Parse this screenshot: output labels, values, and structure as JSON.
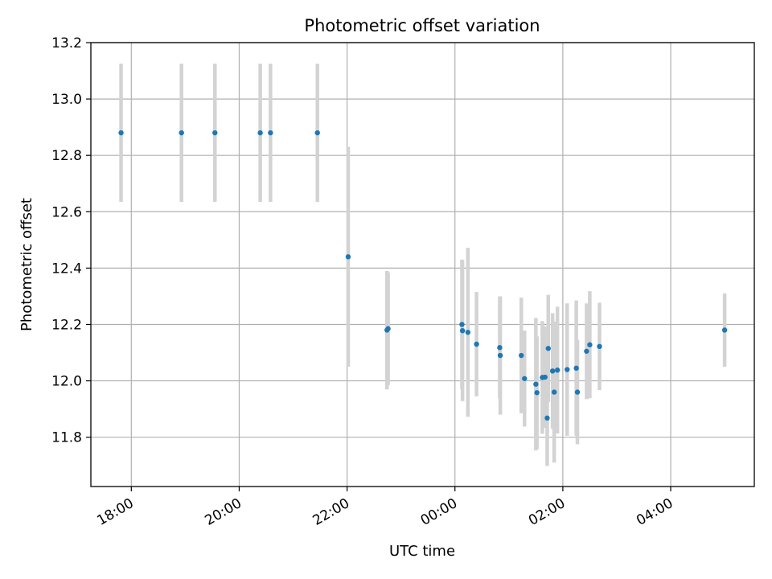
{
  "colors": {
    "points": "#1f77b4",
    "error_bars": "#d3d3d3",
    "grid": "#b0b0b0"
  },
  "chart_data": {
    "type": "scatter",
    "title": "Photometric offset variation",
    "xlabel": "UTC time",
    "ylabel": "Photometric offset",
    "x_unit": "hours (UTC; values above 24 fall on the next day)",
    "xlim": [
      17.25,
      29.55
    ],
    "ylim": [
      11.625,
      13.2
    ],
    "grid": true,
    "legend": "none",
    "x_ticks": [
      {
        "value": 18,
        "label": "18:00"
      },
      {
        "value": 20,
        "label": "20:00"
      },
      {
        "value": 22,
        "label": "22:00"
      },
      {
        "value": 24,
        "label": "00:00"
      },
      {
        "value": 26,
        "label": "02:00"
      },
      {
        "value": 28,
        "label": "04:00"
      }
    ],
    "y_ticks": [
      {
        "value": 11.8,
        "label": "11.8"
      },
      {
        "value": 12.0,
        "label": "12.0"
      },
      {
        "value": 12.2,
        "label": "12.2"
      },
      {
        "value": 12.4,
        "label": "12.4"
      },
      {
        "value": 12.6,
        "label": "12.6"
      },
      {
        "value": 12.8,
        "label": "12.8"
      },
      {
        "value": 13.0,
        "label": "13.0"
      },
      {
        "value": 13.2,
        "label": "13.2"
      }
    ],
    "points": [
      {
        "x": 17.81,
        "y": 12.88,
        "yerr": 0.245
      },
      {
        "x": 18.93,
        "y": 12.88,
        "yerr": 0.245
      },
      {
        "x": 19.55,
        "y": 12.88,
        "yerr": 0.245
      },
      {
        "x": 20.39,
        "y": 12.88,
        "yerr": 0.245
      },
      {
        "x": 20.58,
        "y": 12.88,
        "yerr": 0.245
      },
      {
        "x": 21.45,
        "y": 12.88,
        "yerr": 0.245
      },
      {
        "x": 22.02,
        "y": 12.44,
        "yerr": 0.39
      },
      {
        "x": 22.74,
        "y": 12.18,
        "yerr": 0.21
      },
      {
        "x": 22.76,
        "y": 12.185,
        "yerr": 0.2
      },
      {
        "x": 24.13,
        "y": 12.2,
        "yerr": 0.23
      },
      {
        "x": 24.14,
        "y": 12.178,
        "yerr": 0.25
      },
      {
        "x": 24.24,
        "y": 12.172,
        "yerr": 0.3
      },
      {
        "x": 24.4,
        "y": 12.13,
        "yerr": 0.185
      },
      {
        "x": 24.83,
        "y": 12.118,
        "yerr": 0.18
      },
      {
        "x": 24.84,
        "y": 12.09,
        "yerr": 0.21
      },
      {
        "x": 25.23,
        "y": 12.09,
        "yerr": 0.205
      },
      {
        "x": 25.29,
        "y": 12.008,
        "yerr": 0.17
      },
      {
        "x": 25.5,
        "y": 11.988,
        "yerr": 0.235
      },
      {
        "x": 25.52,
        "y": 11.958,
        "yerr": 0.2
      },
      {
        "x": 25.62,
        "y": 12.012,
        "yerr": 0.2
      },
      {
        "x": 25.67,
        "y": 12.013,
        "yerr": 0.18
      },
      {
        "x": 25.71,
        "y": 11.868,
        "yerr": 0.17
      },
      {
        "x": 25.73,
        "y": 12.115,
        "yerr": 0.19
      },
      {
        "x": 25.81,
        "y": 12.035,
        "yerr": 0.205
      },
      {
        "x": 25.84,
        "y": 11.96,
        "yerr": 0.25
      },
      {
        "x": 25.9,
        "y": 12.038,
        "yerr": 0.225
      },
      {
        "x": 26.08,
        "y": 12.04,
        "yerr": 0.235
      },
      {
        "x": 26.25,
        "y": 12.045,
        "yerr": 0.24
      },
      {
        "x": 26.27,
        "y": 11.96,
        "yerr": 0.185
      },
      {
        "x": 26.44,
        "y": 12.105,
        "yerr": 0.17
      },
      {
        "x": 26.5,
        "y": 12.128,
        "yerr": 0.19
      },
      {
        "x": 26.68,
        "y": 12.122,
        "yerr": 0.155
      },
      {
        "x": 29.0,
        "y": 12.18,
        "yerr": 0.13
      }
    ]
  }
}
